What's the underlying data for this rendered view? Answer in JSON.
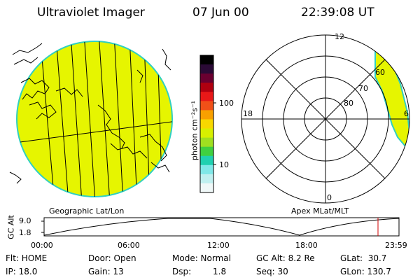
{
  "header": {
    "instrument": "Ultraviolet Imager",
    "date": "07 Jun 00",
    "time": "22:39:08 UT"
  },
  "colorbar": {
    "unit_label": "photon cm⁻²s⁻¹",
    "tick_labels": [
      "100",
      "10"
    ],
    "colors": [
      "#000000",
      "#2a0a35",
      "#6a0030",
      "#b00010",
      "#e81818",
      "#f05018",
      "#f8a000",
      "#f8d800",
      "#d8f000",
      "#a0e020",
      "#40d040",
      "#20d0b0",
      "#80e8e8",
      "#c0f0f0",
      "#f0f8f8"
    ]
  },
  "left_map": {
    "label": "Geographic Lat/Lon",
    "fill_color": "#e6f500",
    "edge_color": "#30d0c0"
  },
  "right_map": {
    "label": "Apex MLat/MLT",
    "lat_labels": [
      "60",
      "70",
      "80"
    ],
    "mlt_labels": {
      "top": "12",
      "left": "18",
      "right": "6",
      "bottom": "0"
    }
  },
  "timeline": {
    "ylabel": "GC Alt",
    "y_ticks": [
      "9.0",
      "1.8"
    ],
    "x_ticks": [
      "00:00",
      "06:00",
      "12:00",
      "18:00",
      "23:59"
    ],
    "marker_color": "#d00000"
  },
  "info": {
    "flt": "Flt: HOME",
    "ip": "IP: 18.0",
    "door": "Door: Open",
    "gain": "Gain: 13",
    "mode": "Mode: Normal",
    "dsp_label": "Dsp:",
    "dsp_value": "1.8",
    "gc_alt": "GC Alt: 8.2 Re",
    "seq": "Seq: 30",
    "glat": "GLat:  30.7",
    "glon": "GLon: 130.7"
  }
}
